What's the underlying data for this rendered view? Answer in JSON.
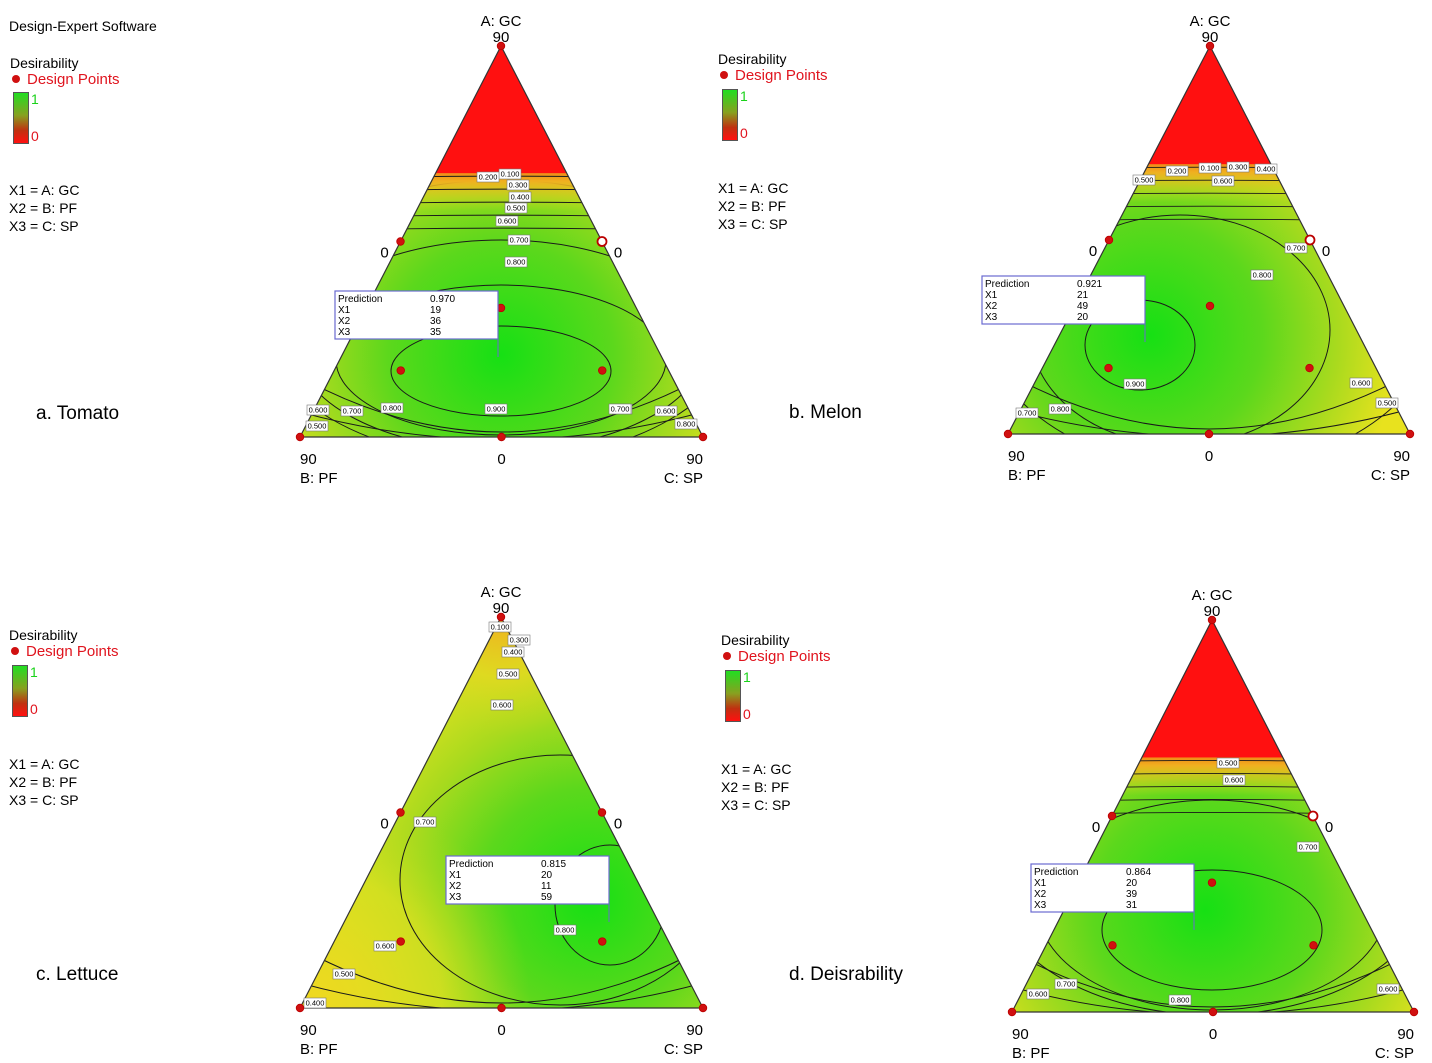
{
  "software_title": "Design-Expert   Software",
  "legend": {
    "title": "Desirability",
    "design_points": "Design Points",
    "scale_high": "1",
    "scale_low": "0",
    "x1": "X1 = A: GC",
    "x2": "X2 = B: PF",
    "x3": "X3 = C: SP"
  },
  "colors": {
    "high": "#22dd22",
    "mid": "#e8e820",
    "low": "#ff1010",
    "point": "#d01010"
  },
  "chart_data": [
    {
      "type": "ternary-contour",
      "panel": "a. Tomato",
      "vertices": {
        "top": "A: GC",
        "left": "B: PF",
        "right": "C: SP"
      },
      "tick_top": "90",
      "tick_left": "90",
      "tick_right": "90",
      "tick_bottom_mid": "0",
      "tick_left_mid": "0",
      "tick_right_mid": "0",
      "contour_labels": [
        "0.100",
        "0.200",
        "0.300",
        "0.400",
        "0.500",
        "0.600",
        "0.700",
        "0.800",
        "0.900",
        "0.600",
        "0.700",
        "0.500",
        "0.800",
        "0.700",
        "0.600",
        "0.800",
        "0.700"
      ],
      "prediction": {
        "label": "Prediction",
        "value": "0.970",
        "X1": "19",
        "X2": "36",
        "X3": "35"
      },
      "prediction_keys": [
        "X1",
        "X2",
        "X3"
      ]
    },
    {
      "type": "ternary-contour",
      "panel": "b. Melon",
      "vertices": {
        "top": "A: GC",
        "left": "B: PF",
        "right": "C: SP"
      },
      "tick_top": "90",
      "tick_left": "90",
      "tick_right": "90",
      "tick_bottom_mid": "0",
      "tick_left_mid": "0",
      "tick_right_mid": "0",
      "contour_labels": [
        "0.500",
        "0.200",
        "0.100",
        "0.300",
        "0.400",
        "0.600",
        "0.700",
        "0.800",
        "0.900",
        "0.700",
        "0.800",
        "0.600",
        "0.500"
      ],
      "prediction": {
        "label": "Prediction",
        "value": "0.921",
        "X1": "21",
        "X2": "49",
        "X3": "20"
      }
    },
    {
      "type": "ternary-contour",
      "panel": "c. Lettuce",
      "vertices": {
        "top": "A: GC",
        "left": "B: PF",
        "right": "C: SP"
      },
      "tick_top": "90",
      "tick_left": "90",
      "tick_right": "90",
      "tick_bottom_mid": "0",
      "tick_left_mid": "0",
      "tick_right_mid": "0",
      "contour_labels": [
        "0.100",
        "0.300",
        "0.400",
        "0.500",
        "0.600",
        "0.700",
        "0.800",
        "0.600",
        "0.500",
        "0.400"
      ],
      "prediction": {
        "label": "Prediction",
        "value": "0.815",
        "X1": "20",
        "X2": "11",
        "X3": "59"
      }
    },
    {
      "type": "ternary-contour",
      "panel": "d. Deisrability",
      "vertices": {
        "top": "A: GC",
        "left": "B: PF",
        "right": "C: SP"
      },
      "tick_top": "90",
      "tick_left": "90",
      "tick_right": "90",
      "tick_bottom_mid": "0",
      "tick_left_mid": "0",
      "tick_right_mid": "0",
      "contour_labels": [
        "0.500",
        "0.600",
        "0.700",
        "0.800",
        "0.700",
        "0.600",
        "0.600"
      ],
      "prediction": {
        "label": "Prediction",
        "value": "0.864",
        "X1": "20",
        "X2": "39",
        "X3": "31"
      }
    }
  ]
}
